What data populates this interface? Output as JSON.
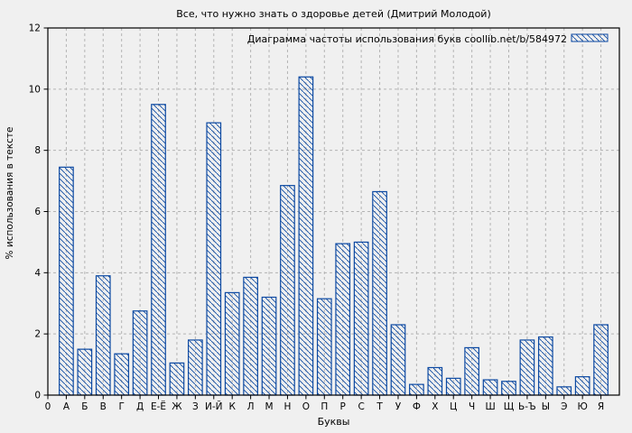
{
  "window": {
    "background": "#f0f0f0"
  },
  "chart_data": {
    "type": "bar",
    "title": "Все, что нужно знать о здоровье детей (Дмитрий Молодой)",
    "legend": "Диаграмма частоты использования букв coollib.net/b/584972",
    "legend_position": "top-right-inside",
    "xlabel": "Буквы",
    "ylabel": "% использования в тексте",
    "ylim": [
      0,
      12
    ],
    "yticks": [
      0,
      2,
      4,
      6,
      8,
      10,
      12
    ],
    "grid": true,
    "bar_style": "diagonal-hatch-outline",
    "colors": {
      "bar": "#0c49a2",
      "grid": "#b3b3b3",
      "frame": "#000000",
      "background": "#f0f0f0",
      "text": "#000000"
    },
    "categories": [
      "0",
      "А",
      "Б",
      "В",
      "Г",
      "Д",
      "Е-Ё",
      "Ж",
      "З",
      "И-Й",
      "К",
      "Л",
      "М",
      "Н",
      "О",
      "П",
      "Р",
      "С",
      "Т",
      "У",
      "Ф",
      "Х",
      "Ц",
      "Ч",
      "Ш",
      "Щ",
      "Ь-Ъ",
      "Ы",
      "Э",
      "Ю",
      "Я"
    ],
    "values": [
      0,
      7.45,
      1.5,
      3.9,
      1.35,
      2.75,
      9.5,
      1.05,
      1.8,
      8.9,
      3.35,
      3.85,
      3.2,
      6.85,
      10.4,
      3.15,
      4.95,
      5.0,
      6.65,
      2.3,
      0.35,
      0.9,
      0.55,
      1.55,
      0.5,
      0.45,
      1.8,
      1.9,
      0.27,
      0.6,
      2.3
    ]
  }
}
